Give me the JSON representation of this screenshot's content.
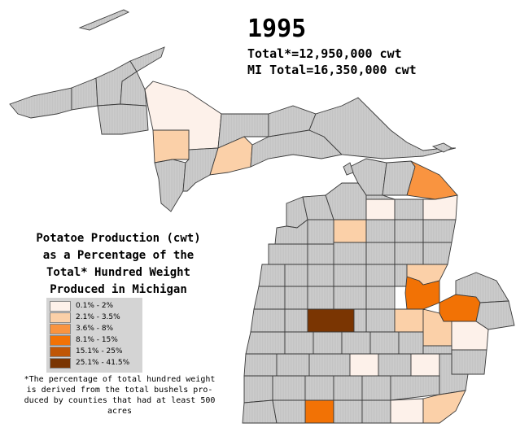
{
  "header": {
    "year": "1995",
    "total_line": "Total*=12,950,000 cwt",
    "mi_total_line": "MI Total=16,350,000 cwt"
  },
  "legend": {
    "title_lines": [
      "Potatoe Production (cwt)",
      "as a Percentage of the",
      "Total* Hundred Weight",
      "Produced in Michigan"
    ],
    "items": [
      {
        "label": "0.1% - 2%",
        "color": "#fdf1ea"
      },
      {
        "label": "2.1% - 3.5%",
        "color": "#fbd0a8"
      },
      {
        "label": "3.6% - 8%",
        "color": "#f99440"
      },
      {
        "label": "8.1% - 15%",
        "color": "#f27205"
      },
      {
        "label": "15.1% - 25%",
        "color": "#c05605"
      },
      {
        "label": "25.1% - 41.5%",
        "color": "#7a3502"
      }
    ]
  },
  "footnote": {
    "lines": [
      "*The percentage of total hundred weight",
      "is derived from the total bushels pro-",
      "duced by counties that had at least 500",
      "acres"
    ]
  },
  "map_colors": {
    "no_data": "#cccccc",
    "water": "#ffffff"
  }
}
